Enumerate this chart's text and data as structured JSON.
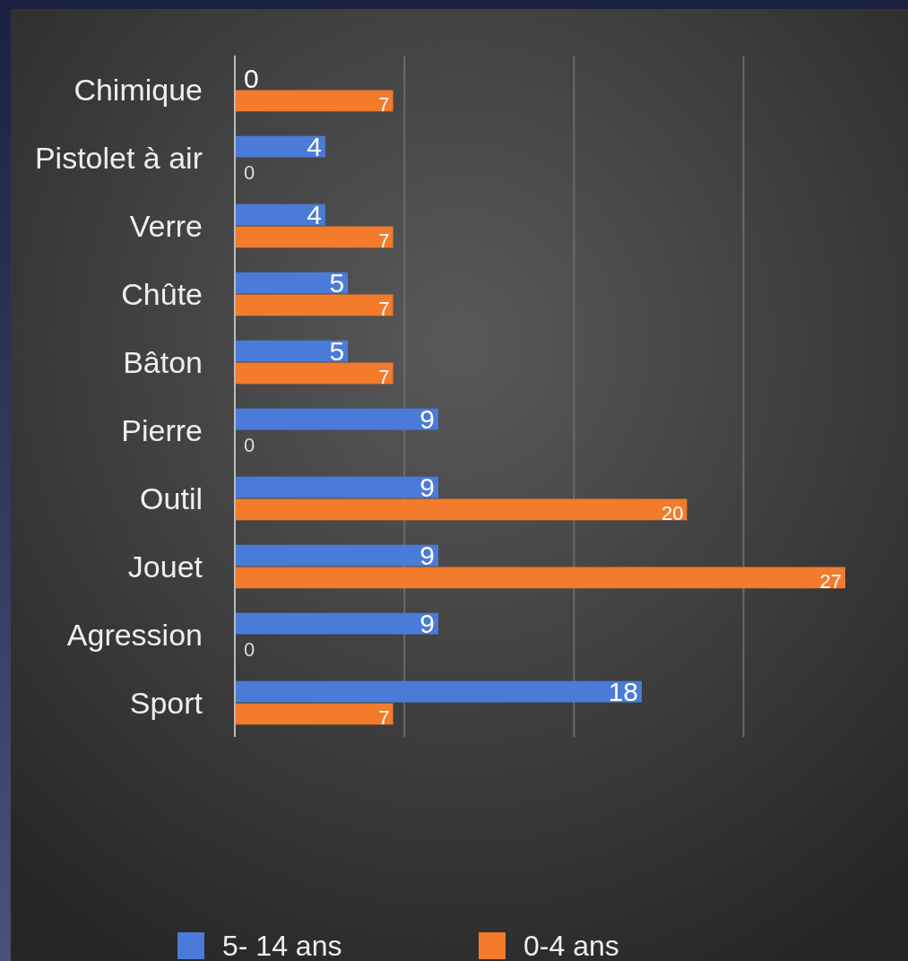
{
  "chart_data": {
    "type": "bar",
    "orientation": "horizontal",
    "categories": [
      "Chimique",
      "Pistolet à air",
      "Verre",
      "Chûte",
      "Bâton",
      "Pierre",
      "Outil",
      "Jouet",
      "Agression",
      "Sport"
    ],
    "series": [
      {
        "name": "5- 14 ans",
        "color": "#4a7bd8",
        "values": [
          0,
          4,
          4,
          5,
          5,
          9,
          9,
          9,
          9,
          18
        ]
      },
      {
        "name": "0-4 ans",
        "color": "#f27b2c",
        "values": [
          7,
          0,
          7,
          7,
          7,
          0,
          20,
          27,
          0,
          7
        ]
      }
    ],
    "xticks": [
      {
        "value": 7.5,
        "label": null
      },
      {
        "value": 15,
        "label": null
      },
      {
        "value": 22.5,
        "label": null
      }
    ],
    "grid": "x",
    "data_labels": true,
    "legend": "bottom",
    "tick_labels": "y"
  }
}
